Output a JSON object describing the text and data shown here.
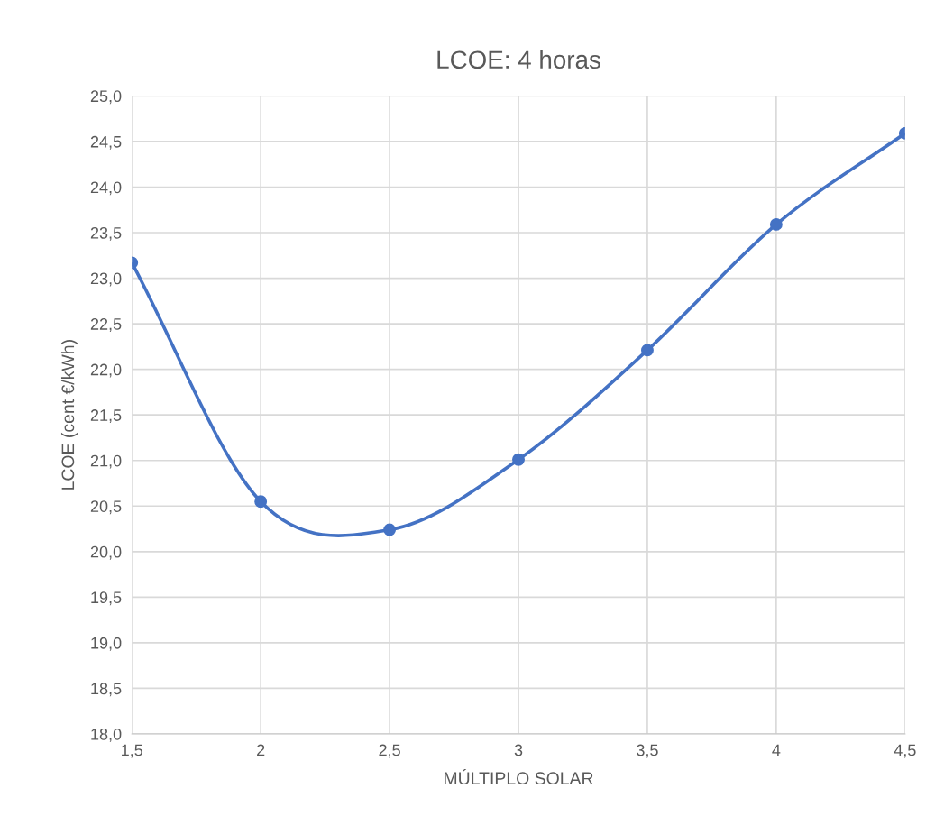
{
  "chart_data": {
    "type": "line",
    "title": "LCOE: 4 horas",
    "xlabel": "MÚLTIPLO SOLAR",
    "ylabel": "LCOE (cent €/kWh)",
    "x": [
      1.5,
      2,
      2.5,
      3,
      3.5,
      4,
      4.5
    ],
    "series": [
      {
        "color": "#4472c4",
        "values": [
          23.17,
          20.55,
          20.24,
          21.01,
          22.21,
          23.59,
          24.59
        ]
      }
    ],
    "xlim": [
      1.5,
      4.5
    ],
    "xticks": [
      {
        "value": 1.5,
        "label": "1,5"
      },
      2,
      {
        "value": 2.5,
        "label": "2,5"
      },
      3,
      {
        "value": 3.5,
        "label": "3,5"
      },
      4,
      {
        "value": 4.5,
        "label": "4,5"
      }
    ],
    "ylim": [
      18,
      25
    ],
    "yticks": [
      {
        "value": 18,
        "label": "18,0"
      },
      {
        "value": 18.5,
        "label": "18,5"
      },
      {
        "value": 19,
        "label": "19,0"
      },
      {
        "value": 19.5,
        "label": "19,5"
      },
      {
        "value": 20,
        "label": "20,0"
      },
      {
        "value": 20.5,
        "label": "20,5"
      },
      {
        "value": 21,
        "label": "21,0"
      },
      {
        "value": 21.5,
        "label": "21,5"
      },
      {
        "value": 22,
        "label": "22,0"
      },
      {
        "value": 22.5,
        "label": "22,5"
      },
      {
        "value": 23,
        "label": "23,0"
      },
      {
        "value": 23.5,
        "label": "23,5"
      },
      {
        "value": 24,
        "label": "24,0"
      },
      {
        "value": 24.5,
        "label": "24,5"
      },
      {
        "value": 25,
        "label": "25,0"
      }
    ],
    "grid": true,
    "marker": "circle",
    "line_style": "solid",
    "legend": false
  }
}
